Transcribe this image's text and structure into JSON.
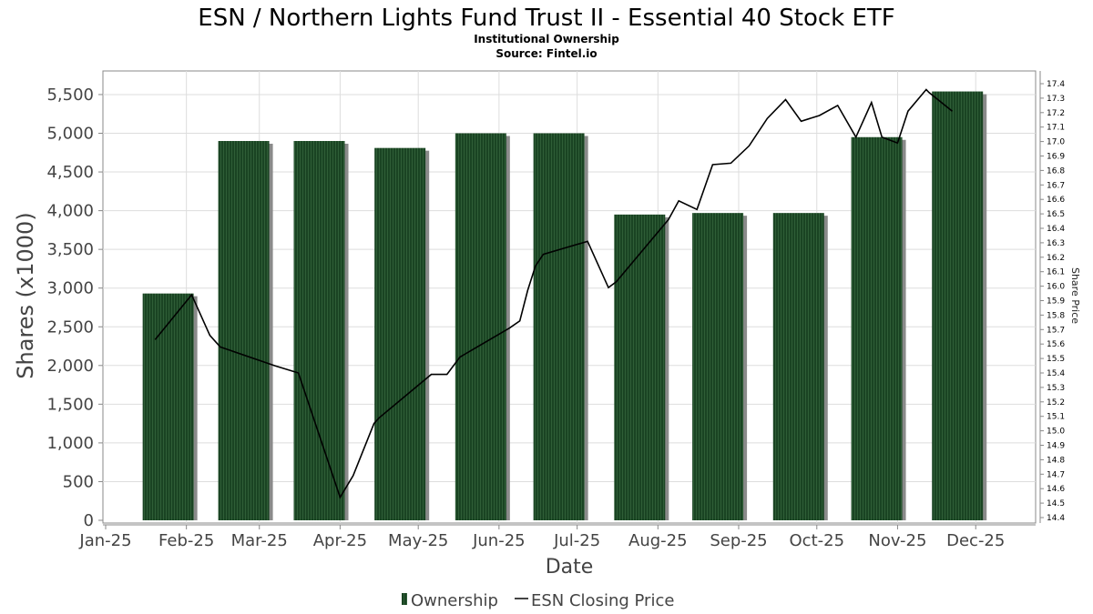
{
  "chart_data": {
    "type": "bar+line",
    "title": "ESN / Northern Lights Fund Trust II - Essential 40 Stock ETF",
    "subtitle1": "Institutional Ownership",
    "subtitle2": "Source: Fintel.io",
    "xlabel": "Date",
    "ylabel": "Shares (x1000)",
    "y2label": "Share Price",
    "ylim": [
      0,
      5800
    ],
    "y2lim": [
      14.4,
      17.4
    ],
    "grid": true,
    "legend_position": "bottom",
    "x_ticks": [
      "Jan-25",
      "Feb-25",
      "Mar-25",
      "Apr-25",
      "May-25",
      "Jun-25",
      "Jul-25",
      "Aug-25",
      "Sep-25",
      "Oct-25",
      "Nov-25",
      "Dec-25"
    ],
    "x_tick_dates": [
      "2025-01-01",
      "2025-02-01",
      "2025-03-01",
      "2025-04-01",
      "2025-05-01",
      "2025-06-01",
      "2025-07-01",
      "2025-08-01",
      "2025-09-01",
      "2025-10-01",
      "2025-11-01",
      "2025-12-01"
    ],
    "y_ticks": [
      "0",
      "500",
      "1,000",
      "1,500",
      "2,000",
      "2,500",
      "3,000",
      "3,500",
      "4,000",
      "4,500",
      "5,000",
      "5,500"
    ],
    "y_tick_values": [
      0,
      500,
      1000,
      1500,
      2000,
      2500,
      3000,
      3500,
      4000,
      4500,
      5000,
      5500
    ],
    "y2_ticks": [
      "14.4",
      "14.5",
      "14.6",
      "14.7",
      "14.8",
      "14.9",
      "15.0",
      "15.1",
      "15.2",
      "15.3",
      "15.4",
      "15.5",
      "15.6",
      "15.7",
      "15.8",
      "15.9",
      "16.0",
      "16.1",
      "16.2",
      "16.3",
      "16.4",
      "16.5",
      "16.6",
      "16.7",
      "16.8",
      "16.9",
      "17.0",
      "17.1",
      "17.2",
      "17.3",
      "17.4"
    ],
    "legend": [
      "Ownership",
      "ESN Closing Price"
    ],
    "colors": {
      "bar": "#1a4423",
      "bar_shadow": "#8a8a8a",
      "line": "#000000",
      "grid": "#dddddd"
    },
    "series": [
      {
        "name": "Ownership",
        "type": "bar",
        "dates": [
          "2025-01-25",
          "2025-02-23",
          "2025-03-24",
          "2025-04-24",
          "2025-05-25",
          "2025-06-24",
          "2025-07-25",
          "2025-08-24",
          "2025-09-24",
          "2025-10-24",
          "2025-11-24"
        ],
        "values": [
          2930,
          4900,
          4900,
          4810,
          5000,
          5000,
          3950,
          3970,
          3970,
          4950,
          5540
        ]
      },
      {
        "name": "ESN Closing Price",
        "type": "line",
        "dates": [
          "2025-01-20",
          "2025-02-03",
          "2025-02-10",
          "2025-02-14",
          "2025-03-07",
          "2025-03-16",
          "2025-04-01",
          "2025-04-06",
          "2025-04-14",
          "2025-04-16",
          "2025-05-06",
          "2025-05-12",
          "2025-05-17",
          "2025-06-05",
          "2025-06-09",
          "2025-06-12",
          "2025-06-15",
          "2025-06-18",
          "2025-07-05",
          "2025-07-13",
          "2025-07-16",
          "2025-08-05",
          "2025-08-09",
          "2025-08-16",
          "2025-08-22",
          "2025-08-29",
          "2025-09-05",
          "2025-09-12",
          "2025-09-19",
          "2025-09-25",
          "2025-10-02",
          "2025-10-09",
          "2025-10-16",
          "2025-10-22",
          "2025-10-26",
          "2025-11-01",
          "2025-11-05",
          "2025-11-12",
          "2025-11-13",
          "2025-11-22"
        ],
        "values": [
          15.63,
          15.94,
          15.66,
          15.58,
          15.45,
          15.4,
          14.54,
          14.69,
          15.05,
          15.09,
          15.39,
          15.39,
          15.51,
          15.71,
          15.76,
          15.97,
          16.14,
          16.22,
          16.31,
          15.99,
          16.03,
          16.46,
          16.59,
          16.53,
          16.84,
          16.85,
          16.97,
          17.16,
          17.29,
          17.14,
          17.18,
          17.25,
          17.03,
          17.27,
          17.03,
          16.99,
          17.21,
          17.36,
          17.34,
          17.21
        ]
      }
    ]
  }
}
